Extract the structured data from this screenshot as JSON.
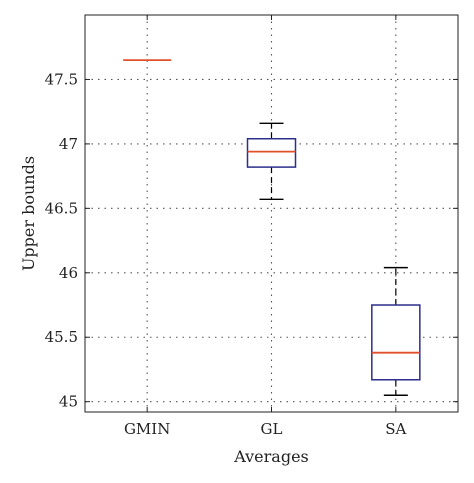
{
  "chart_data": {
    "type": "box",
    "xlabel": "Averages",
    "ylabel": "Upper bounds",
    "ylim": [
      44.92,
      48.0
    ],
    "yticks": [
      45,
      45.5,
      46,
      46.5,
      47,
      47.5
    ],
    "ytick_labels": [
      "45",
      "45.5",
      "46",
      "46.5",
      "47",
      "47.5"
    ],
    "grid": true,
    "categories": [
      "GMIN",
      "GL",
      "SA"
    ],
    "boxes": [
      {
        "category": "GMIN",
        "min": 47.65,
        "q1": 47.65,
        "median": 47.65,
        "q3": 47.65,
        "max": 47.65
      },
      {
        "category": "GL",
        "min": 46.57,
        "q1": 46.82,
        "median": 46.94,
        "q3": 47.04,
        "max": 47.16
      },
      {
        "category": "SA",
        "min": 45.05,
        "q1": 45.17,
        "median": 45.38,
        "q3": 45.75,
        "max": 46.04
      }
    ],
    "colors": {
      "box": "#2b2e8c",
      "median": "#e0502a",
      "whisker": "#000000",
      "grid": "#555555"
    }
  }
}
